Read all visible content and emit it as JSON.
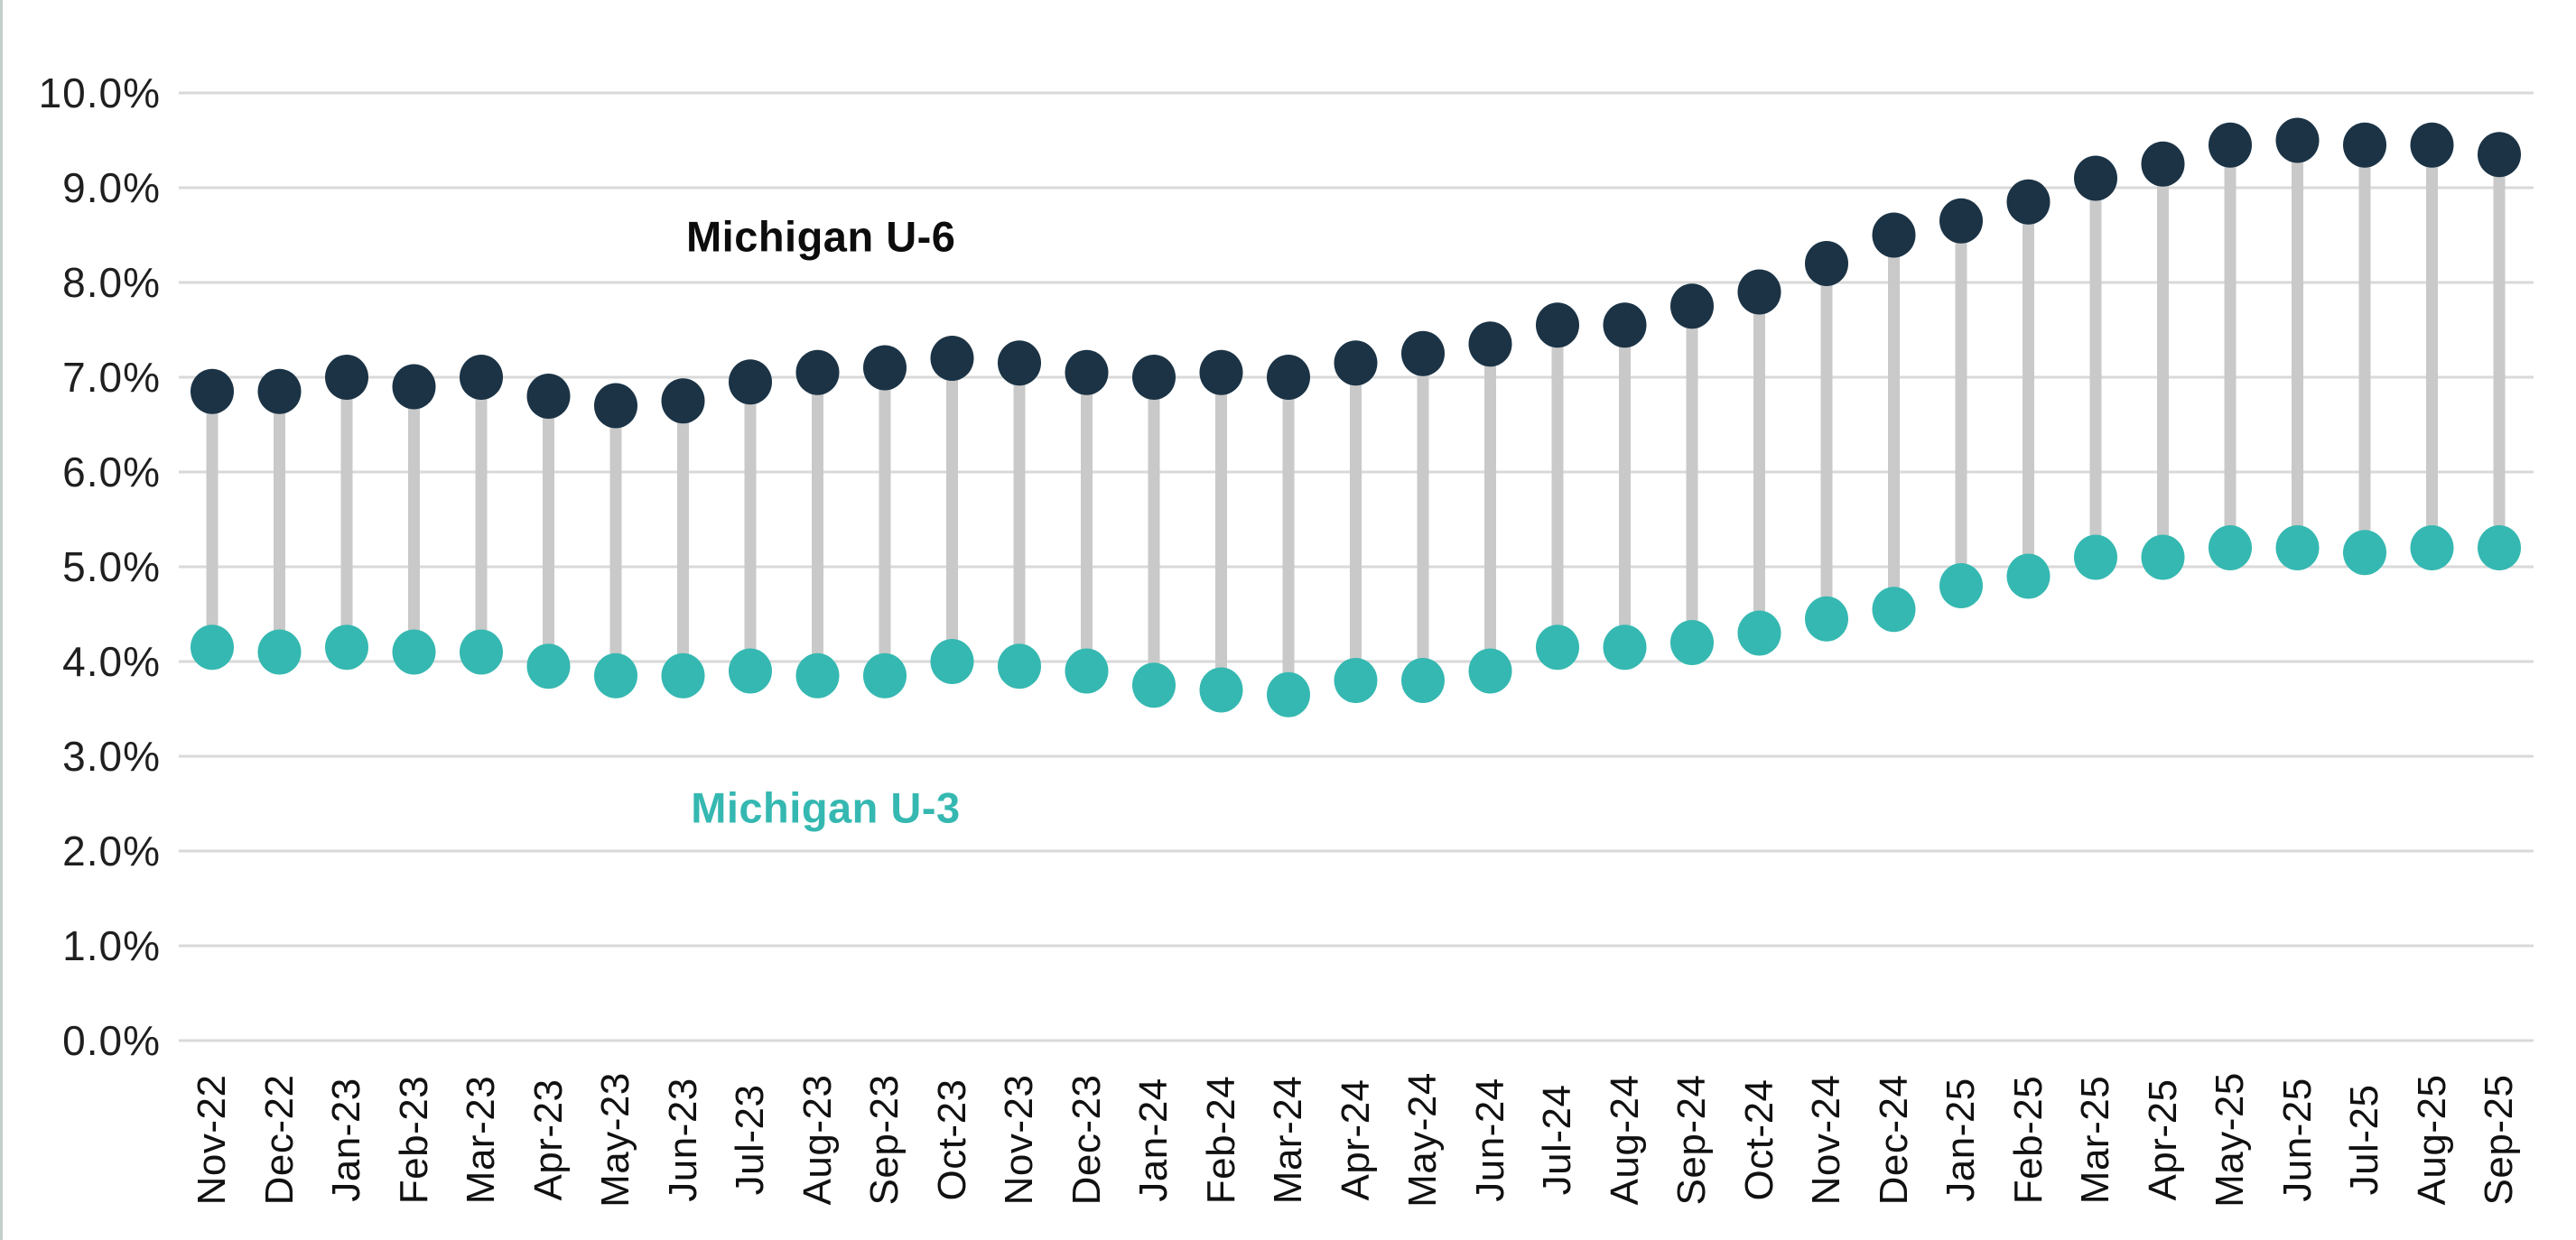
{
  "page": {
    "background_color": "#ffffff",
    "left_edge_line_color": "#b9c7c0"
  },
  "chart_data": {
    "type": "dumbbell",
    "title": "",
    "xlabel": "",
    "ylabel": "",
    "ylim": [
      0,
      10
    ],
    "grid": "horizontal",
    "gridline_color": "#d9d9d9",
    "stem_color": "#c9c9c9",
    "legend": "inline-annotations",
    "y_ticks": [
      "10.0%",
      "9.0%",
      "8.0%",
      "7.0%",
      "6.0%",
      "5.0%",
      "4.0%",
      "3.0%",
      "2.0%",
      "1.0%",
      "0.0%"
    ],
    "y_tick_values": [
      10,
      9,
      8,
      7,
      6,
      5,
      4,
      3,
      2,
      1,
      0
    ],
    "categories": [
      "Nov-22",
      "Dec-22",
      "Jan-23",
      "Feb-23",
      "Mar-23",
      "Apr-23",
      "May-23",
      "Jun-23",
      "Jul-23",
      "Aug-23",
      "Sep-23",
      "Oct-23",
      "Nov-23",
      "Dec-23",
      "Jan-24",
      "Feb-24",
      "Mar-24",
      "Apr-24",
      "May-24",
      "Jun-24",
      "Jul-24",
      "Aug-24",
      "Sep-24",
      "Oct-24",
      "Nov-24",
      "Dec-24",
      "Jan-25",
      "Feb-25",
      "Mar-25",
      "Apr-25",
      "May-25",
      "Jun-25",
      "Jul-25",
      "Aug-25",
      "Sep-25"
    ],
    "series": [
      {
        "name": "Michigan U-6",
        "color": "#1b3345",
        "values": [
          6.85,
          6.85,
          7.0,
          6.9,
          7.0,
          6.8,
          6.7,
          6.75,
          6.95,
          7.05,
          7.1,
          7.2,
          7.15,
          7.05,
          7.0,
          7.05,
          7.0,
          7.15,
          7.25,
          7.35,
          7.55,
          7.55,
          7.75,
          7.9,
          8.2,
          8.5,
          8.65,
          8.85,
          9.1,
          9.25,
          9.45,
          9.5,
          9.45,
          9.45,
          9.35
        ]
      },
      {
        "name": "Michigan U-3",
        "color": "#35b8b1",
        "values": [
          4.15,
          4.1,
          4.15,
          4.1,
          4.1,
          3.95,
          3.85,
          3.85,
          3.9,
          3.85,
          3.85,
          4.0,
          3.95,
          3.9,
          3.75,
          3.7,
          3.65,
          3.8,
          3.8,
          3.9,
          4.15,
          4.15,
          4.2,
          4.3,
          4.45,
          4.55,
          4.8,
          4.9,
          5.1,
          5.1,
          5.2,
          5.2,
          5.15,
          5.2,
          5.2
        ]
      }
    ],
    "annotations": [
      {
        "text": "Michigan U-6",
        "color": "#0c0c0c",
        "x_index": 9.05,
        "y_value": 8.49
      },
      {
        "text": "Michigan U-3",
        "color": "#35b8b1",
        "x_index": 9.12,
        "y_value": 2.46
      }
    ]
  }
}
